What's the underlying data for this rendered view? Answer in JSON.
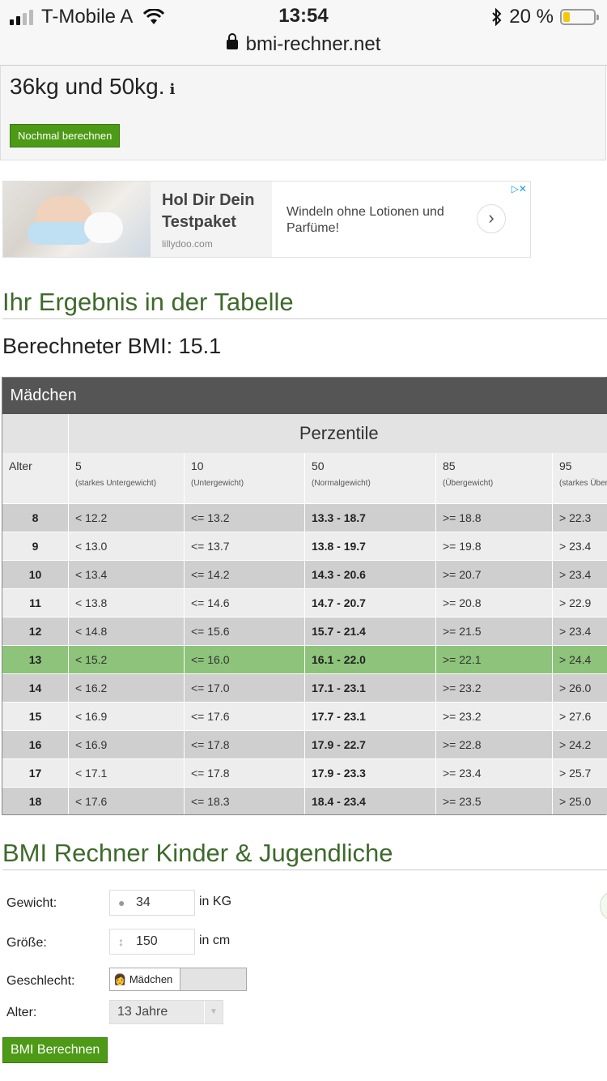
{
  "status_bar": {
    "carrier": "T-Mobile A",
    "time": "13:54",
    "battery": "20 %",
    "battery_level": 0.2
  },
  "url_bar": {
    "domain": "bmi-rechner.net"
  },
  "result": {
    "text": "36kg und 50kg.",
    "info_icon": "info-icon",
    "again_button": "Nochmal berechnen"
  },
  "ad": {
    "title": "Hol Dir Dein Testpaket",
    "domain": "lillydoo.com",
    "description": "Windeln ohne Lotionen und Parfüme!",
    "arrow": "›",
    "choices": "▷✕"
  },
  "table_section": {
    "heading": "Ihr Ergebnis in der Tabelle",
    "bmi_label": "Berechneter BMI: 15.1",
    "gender": "Mädchen",
    "perzentile_label": "Perzentile",
    "alter_label": "Alter",
    "columns": [
      {
        "num": "5",
        "sub": "(starkes Untergewicht)"
      },
      {
        "num": "10",
        "sub": "(Untergewicht)"
      },
      {
        "num": "50",
        "sub": "(Normalgewicht)"
      },
      {
        "num": "85",
        "sub": "(Übergewicht)"
      },
      {
        "num": "95",
        "sub": "(starkes Übergewicht)"
      }
    ],
    "highlight_age": "13",
    "rows": [
      {
        "age": "8",
        "c5": "< 12.2",
        "c10": "<= 13.2",
        "c50": "13.3 - 18.7",
        "c85": ">= 18.8",
        "c95": "> 22.3"
      },
      {
        "age": "9",
        "c5": "< 13.0",
        "c10": "<= 13.7",
        "c50": "13.8 - 19.7",
        "c85": ">= 19.8",
        "c95": "> 23.4"
      },
      {
        "age": "10",
        "c5": "< 13.4",
        "c10": "<= 14.2",
        "c50": "14.3 - 20.6",
        "c85": ">= 20.7",
        "c95": "> 23.4"
      },
      {
        "age": "11",
        "c5": "< 13.8",
        "c10": "<= 14.6",
        "c50": "14.7 - 20.7",
        "c85": ">= 20.8",
        "c95": "> 22.9"
      },
      {
        "age": "12",
        "c5": "< 14.8",
        "c10": "<= 15.6",
        "c50": "15.7 - 21.4",
        "c85": ">= 21.5",
        "c95": "> 23.4"
      },
      {
        "age": "13",
        "c5": "< 15.2",
        "c10": "<= 16.0",
        "c50": "16.1 - 22.0",
        "c85": ">= 22.1",
        "c95": "> 24.4"
      },
      {
        "age": "14",
        "c5": "< 16.2",
        "c10": "<= 17.0",
        "c50": "17.1 - 23.1",
        "c85": ">= 23.2",
        "c95": "> 26.0"
      },
      {
        "age": "15",
        "c5": "< 16.9",
        "c10": "<= 17.6",
        "c50": "17.7 - 23.1",
        "c85": ">= 23.2",
        "c95": "> 27.6"
      },
      {
        "age": "16",
        "c5": "< 16.9",
        "c10": "<= 17.8",
        "c50": "17.9 - 22.7",
        "c85": ">= 22.8",
        "c95": "> 24.2"
      },
      {
        "age": "17",
        "c5": "< 17.1",
        "c10": "<= 17.8",
        "c50": "17.9 - 23.3",
        "c85": ">= 23.4",
        "c95": "> 25.7"
      },
      {
        "age": "18",
        "c5": "< 17.6",
        "c10": "<= 18.3",
        "c50": "18.4 - 23.4",
        "c85": ">= 23.5",
        "c95": "> 25.0"
      }
    ]
  },
  "calculator": {
    "heading": "BMI Rechner Kinder & Jugendliche",
    "weight_label": "Gewicht:",
    "weight_value": "34",
    "weight_unit": "in KG",
    "height_label": "Größe:",
    "height_value": "150",
    "height_unit": "in cm",
    "gender_label": "Geschlecht:",
    "gender_selected": "Mädchen",
    "age_label": "Alter:",
    "age_value": "13 Jahre",
    "submit": "BMI Berechnen"
  },
  "colors": {
    "accent_green": "#4d9a17",
    "heading_green": "#3e6a2c",
    "highlight_row": "#8dc37a"
  }
}
